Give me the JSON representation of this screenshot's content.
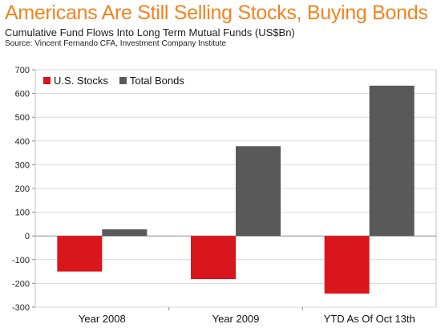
{
  "title": "Americans Are Still Selling Stocks, Buying Bonds",
  "subtitle": "Cumulative Fund Flows Into Long Term Mutual Funds (US$Bn)",
  "source": "Source: Vincent Fernando CFA, Investment Company Institute",
  "colors": {
    "title": "#f5821f",
    "stocks": "#d9161c",
    "bonds": "#595959",
    "grid": "#d9d9d9"
  },
  "chart_data": {
    "type": "bar",
    "categories": [
      "Year 2008",
      "Year 2009",
      "YTD As Of Oct 13th"
    ],
    "series": [
      {
        "name": "U.S. Stocks",
        "values": [
          -150,
          -182,
          -243
        ]
      },
      {
        "name": "Total Bonds",
        "values": [
          28,
          378,
          633
        ]
      }
    ],
    "ylim": [
      -300,
      700
    ],
    "yticks": [
      -300,
      -200,
      -100,
      0,
      100,
      200,
      300,
      400,
      500,
      600,
      700
    ],
    "ytick_labels": [
      "-300",
      "-200",
      "-100",
      "0",
      "100",
      "200",
      "300",
      "400",
      "500",
      "600",
      "700"
    ],
    "xlabel": "",
    "ylabel": "",
    "grid": "horizontal",
    "legend": "top-left"
  }
}
